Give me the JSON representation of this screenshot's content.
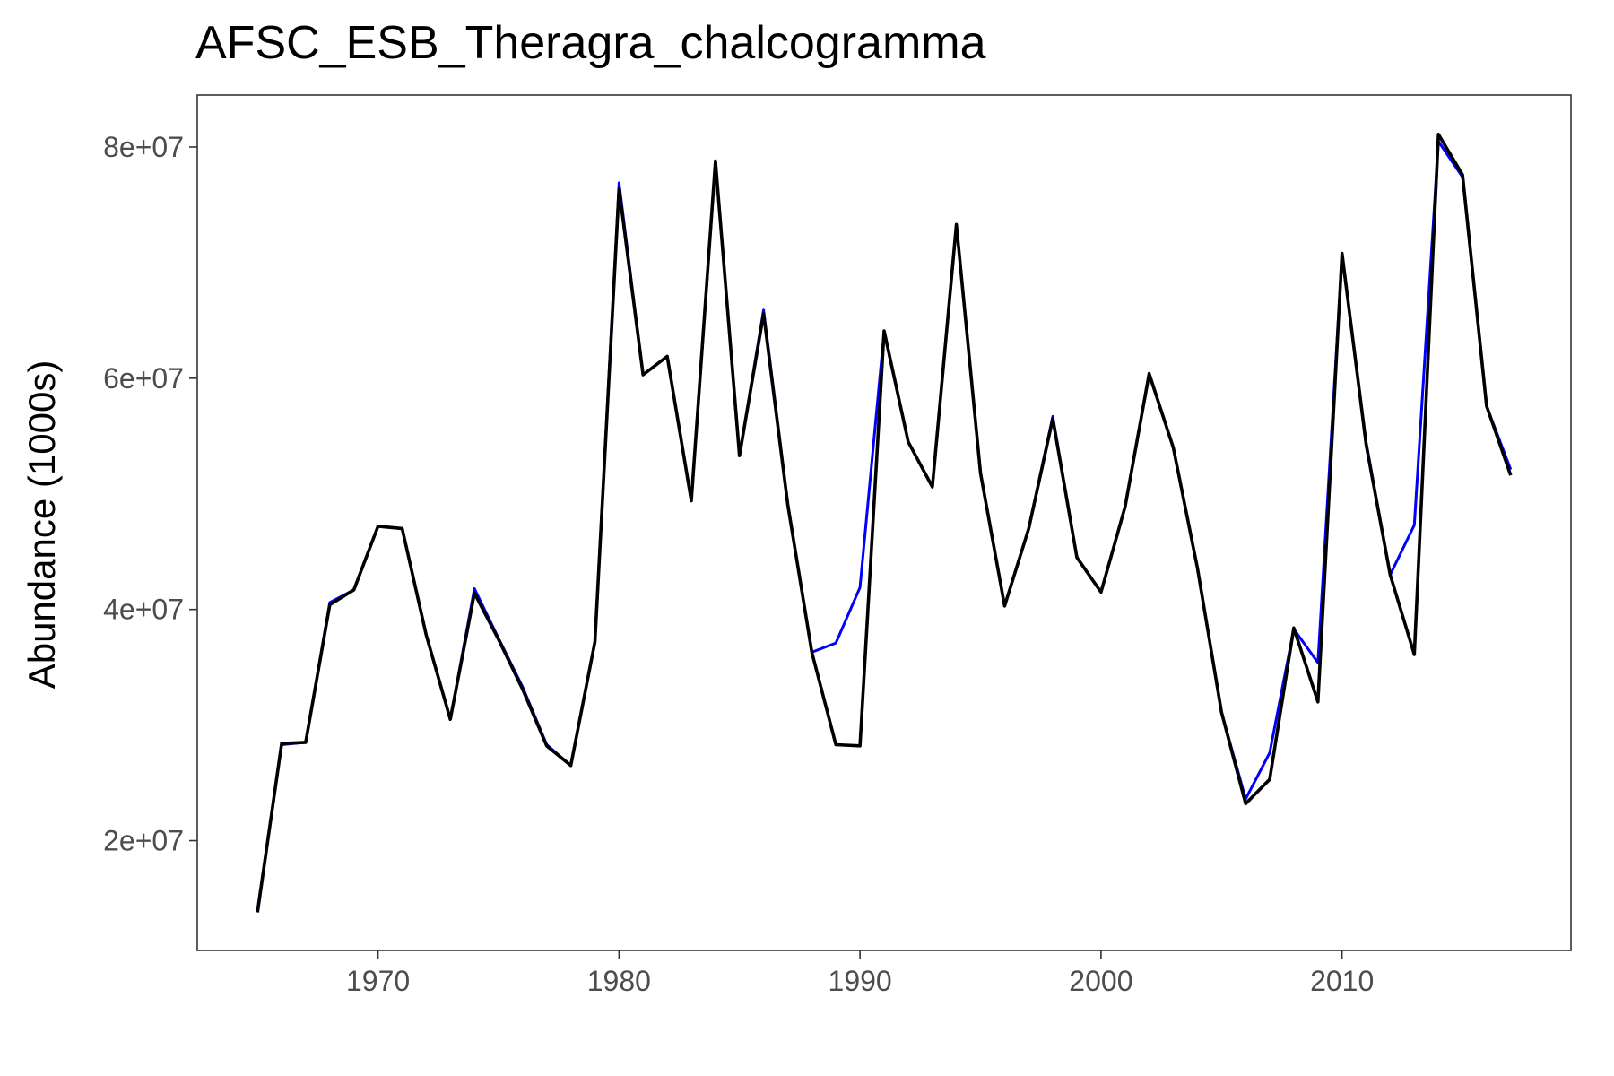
{
  "chart_data": {
    "type": "line",
    "title": "AFSC_ESB_Theragra_chalcogramma",
    "xlabel": "",
    "ylabel": "Abundance (1000s)",
    "xlim": [
      1962.5,
      2019.5
    ],
    "ylim": [
      10500000,
      84500000
    ],
    "x_ticks": [
      1970,
      1980,
      1990,
      2000,
      2010
    ],
    "x_tick_labels": [
      "1970",
      "1980",
      "1990",
      "2000",
      "2010"
    ],
    "y_ticks": [
      20000000,
      40000000,
      60000000,
      80000000
    ],
    "y_tick_labels": [
      "2e+07",
      "4e+07",
      "6e+07",
      "8e+07"
    ],
    "grid": false,
    "legend": "none",
    "x": [
      1965,
      1966,
      1967,
      1968,
      1969,
      1970,
      1971,
      1972,
      1973,
      1974,
      1975,
      1976,
      1977,
      1978,
      1979,
      1980,
      1981,
      1982,
      1983,
      1984,
      1985,
      1986,
      1987,
      1988,
      1989,
      1990,
      1991,
      1992,
      1993,
      1994,
      1995,
      1996,
      1997,
      1998,
      1999,
      2000,
      2001,
      2002,
      2003,
      2004,
      2005,
      2006,
      2007,
      2008,
      2009,
      2010,
      2011,
      2012,
      2013,
      2014,
      2015,
      2016,
      2017
    ],
    "series": [
      {
        "color": "#0000ff",
        "values": [
          14000000,
          28300000,
          28500000,
          40600000,
          41700000,
          47200000,
          47000000,
          37800000,
          30500000,
          41800000,
          37500000,
          33300000,
          28300000,
          26500000,
          37200000,
          76900000,
          60300000,
          61900000,
          49400000,
          78700000,
          53300000,
          65900000,
          49200000,
          36300000,
          37100000,
          41900000,
          64000000,
          54500000,
          50600000,
          73300000,
          51800000,
          40300000,
          47000000,
          56700000,
          44500000,
          41500000,
          48900000,
          60300000,
          54000000,
          43600000,
          31100000,
          23600000,
          27600000,
          38300000,
          35400000,
          70600000,
          54500000,
          43000000,
          47300000,
          80500000,
          77400000,
          57600000,
          52100000
        ]
      },
      {
        "color": "#000000",
        "values": [
          13800000,
          28400000,
          28500000,
          40400000,
          41700000,
          47200000,
          47000000,
          37800000,
          30500000,
          41400000,
          37400000,
          33100000,
          28200000,
          26500000,
          37200000,
          76400000,
          60300000,
          61900000,
          49400000,
          78800000,
          53300000,
          65600000,
          49100000,
          36300000,
          28300000,
          28200000,
          64100000,
          54500000,
          50600000,
          73300000,
          51800000,
          40300000,
          47000000,
          56500000,
          44500000,
          41500000,
          48900000,
          60400000,
          54000000,
          43600000,
          31100000,
          23200000,
          25300000,
          38400000,
          32000000,
          70800000,
          54300000,
          43000000,
          36100000,
          81100000,
          77600000,
          57600000,
          51600000
        ]
      }
    ]
  }
}
